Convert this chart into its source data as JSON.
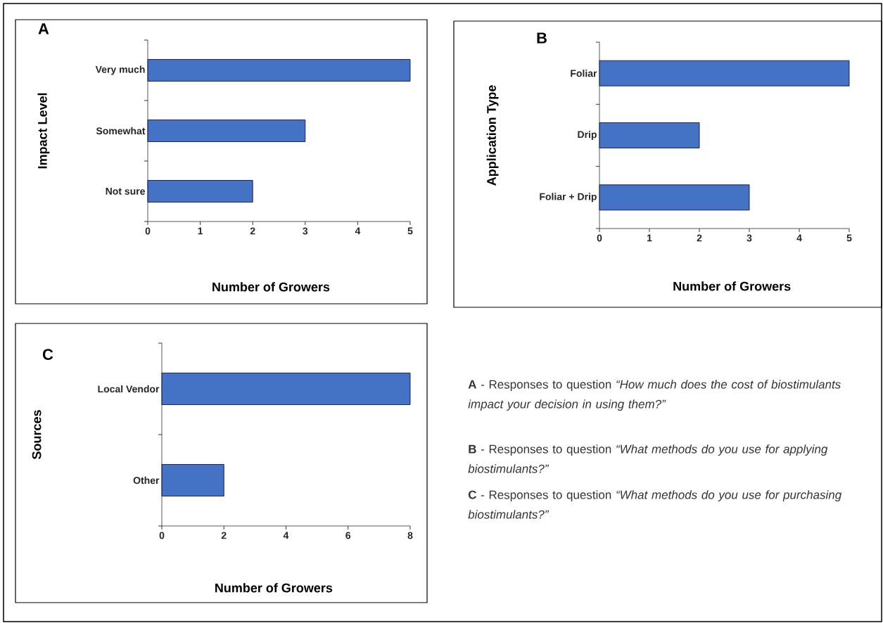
{
  "chart_data": [
    {
      "type": "bar",
      "orientation": "horizontal",
      "title": "A",
      "ylabel": "Impact Level",
      "xlabel": "Number of Growers",
      "categories": [
        "Very much",
        "Somewhat",
        "Not sure"
      ],
      "values": [
        5,
        3,
        2
      ],
      "color": "#4472c4",
      "xlim": [
        0,
        5
      ],
      "xticks": [
        0,
        1,
        2,
        3,
        4,
        5
      ]
    },
    {
      "type": "bar",
      "orientation": "horizontal",
      "title": "B",
      "ylabel": "Application Type",
      "xlabel": "Number of Growers",
      "categories": [
        "Foliar",
        "Drip",
        "Foliar + Drip"
      ],
      "values": [
        5,
        2,
        3
      ],
      "color": "#4472c4",
      "xlim": [
        0,
        5
      ],
      "xticks": [
        0,
        1,
        2,
        3,
        4,
        5
      ]
    },
    {
      "type": "bar",
      "orientation": "horizontal",
      "title": "C",
      "ylabel": "Sources",
      "xlabel": "Number of Growers",
      "categories": [
        "Local Vendor",
        "Other"
      ],
      "values": [
        8,
        2
      ],
      "color": "#4472c4",
      "xlim": [
        0,
        8
      ],
      "xticks": [
        0,
        2,
        4,
        6,
        8
      ]
    },
    {
      "type": "other",
      "annotations": [
        "**A** - Responses to question *“How much does the cost of biostimulants impact your decision in using them?”*",
        "**B** - Responses to question *“What methods do you use for applying biostimulants?”*",
        "**C** - Responses to question *“What methods do you use for purchasing biostimulants?”*"
      ]
    }
  ]
}
